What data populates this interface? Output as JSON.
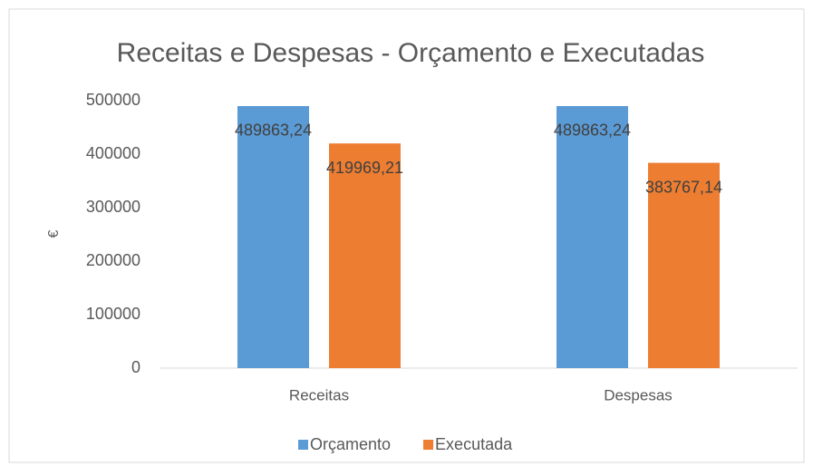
{
  "chart_data": {
    "type": "bar",
    "title": "Receitas e Despesas - Orçamento e Executadas",
    "y_label": "€",
    "categories": [
      "Receitas",
      "Despesas"
    ],
    "series": [
      {
        "name": "Orçamento",
        "color": "#5b9bd5",
        "values": [
          489863.24,
          489863.24
        ],
        "value_labels": [
          "489863,24",
          "489863,24"
        ]
      },
      {
        "name": "Executada",
        "color": "#ed7d31",
        "values": [
          419969.21,
          383767.14
        ],
        "value_labels": [
          "419969,21",
          "383767,14"
        ]
      }
    ],
    "ylim": [
      0,
      500000
    ],
    "yticks": [
      0,
      100000,
      200000,
      300000,
      400000,
      500000
    ],
    "grid": false,
    "legend": "bottom"
  }
}
